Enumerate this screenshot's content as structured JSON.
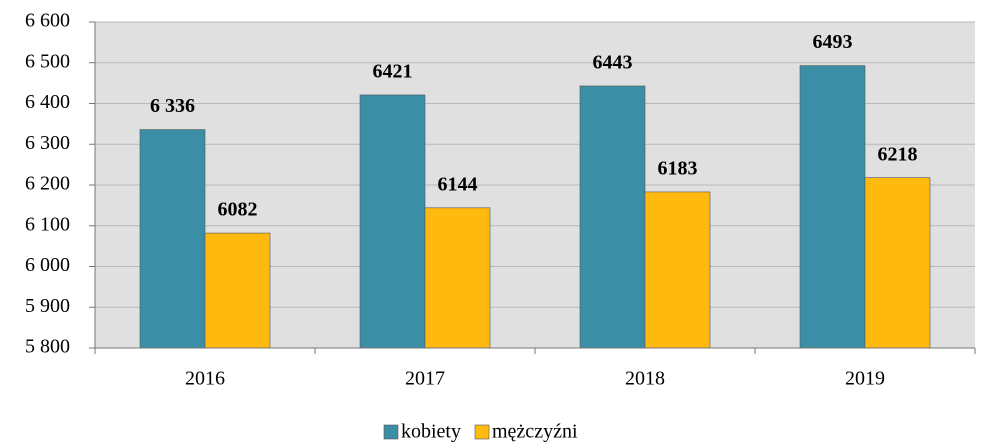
{
  "chart_data": {
    "type": "bar",
    "categories": [
      "2016",
      "2017",
      "2018",
      "2019"
    ],
    "series": [
      {
        "name": "kobiety",
        "color": "#3a8fa6",
        "values": [
          6336,
          6421,
          6443,
          6493
        ],
        "value_labels": [
          "6 336",
          "6421",
          "6443",
          "6493"
        ]
      },
      {
        "name": "mężczyźni",
        "color": "#ffb90f",
        "values": [
          6082,
          6144,
          6183,
          6218
        ]
      }
    ],
    "ylim": [
      5800,
      6600
    ],
    "yticks": [
      {
        "value": 5800,
        "label": "5 800"
      },
      {
        "value": 5900,
        "label": "5 900"
      },
      {
        "value": 6000,
        "label": "6 000"
      },
      {
        "value": 6100,
        "label": "6 100"
      },
      {
        "value": 6200,
        "label": "6 200"
      },
      {
        "value": 6300,
        "label": "6 300"
      },
      {
        "value": 6400,
        "label": "6 400"
      },
      {
        "value": 6500,
        "label": "6 500"
      },
      {
        "value": 6600,
        "label": "6 600"
      }
    ],
    "grid": true
  }
}
